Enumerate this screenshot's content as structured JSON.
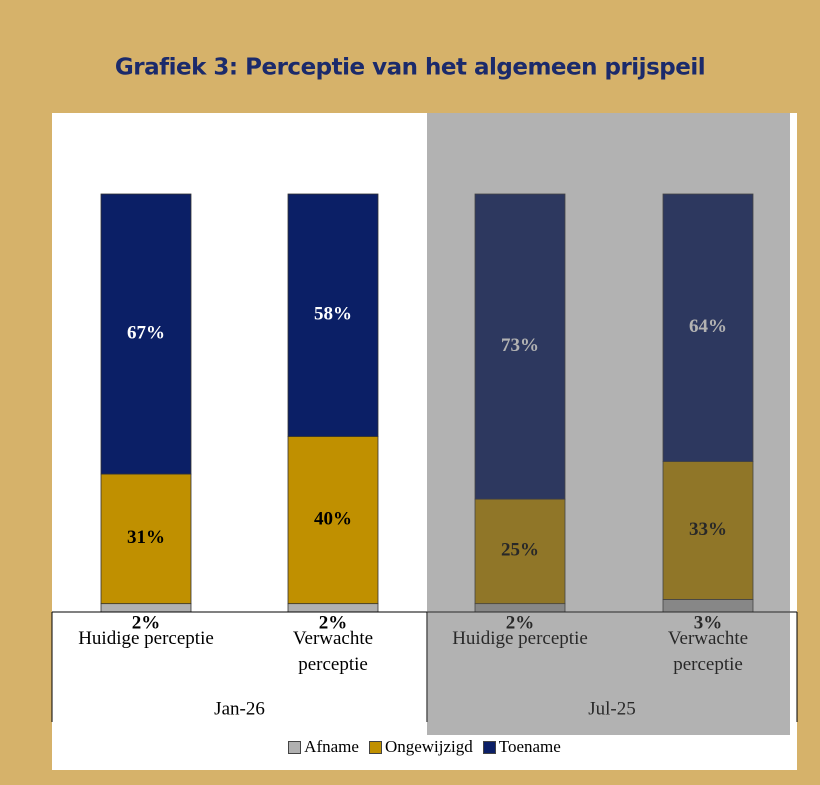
{
  "chart_data": {
    "type": "stacked_bar",
    "title": "Grafiek 3: Perceptie van het algemeen prijspeil",
    "groups": [
      {
        "label": "Jan-26",
        "categories": [
          "Huidige perceptie",
          "Verwachte perceptie"
        ]
      },
      {
        "label": "Jul-25",
        "categories": [
          "Huidige perceptie",
          "Verwachte perceptie"
        ]
      }
    ],
    "highlight_group": 1,
    "ylim": [
      0,
      100
    ],
    "series": [
      {
        "name": "Afname",
        "color": "#b0b0b0",
        "label_color": "#000000",
        "values": [
          2,
          2,
          2,
          3
        ],
        "value_labels": [
          "2%",
          "2%",
          "2%",
          "3%"
        ]
      },
      {
        "name": "Ongewijzigd",
        "color": "#c09000",
        "label_color": "#000000",
        "values": [
          31,
          40,
          25,
          33
        ],
        "value_labels": [
          "31%",
          "40%",
          "25%",
          "33%"
        ]
      },
      {
        "name": "Toename",
        "color": "#0b1f66",
        "label_color": "#ffffff",
        "values": [
          67,
          58,
          73,
          64
        ],
        "value_labels": [
          "67%",
          "58%",
          "73%",
          "64%"
        ]
      }
    ],
    "legend": "bottom"
  }
}
